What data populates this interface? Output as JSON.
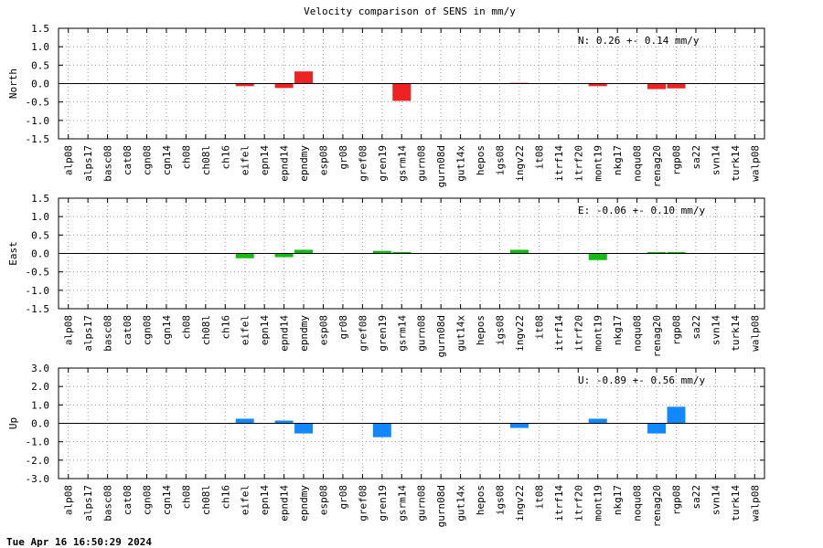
{
  "title": "Velocity comparison of SENS in mm/y",
  "footer": "Tue Apr 16 16:50:29 2024",
  "chart_data": {
    "type": "bar",
    "title": "Velocity comparison of SENS in mm/y",
    "categories": [
      "alp08",
      "alps17",
      "basc08",
      "cat08",
      "cgn08",
      "cgn14",
      "ch08",
      "ch08l",
      "ch16",
      "eifel",
      "epn14",
      "epnd14",
      "epndmy",
      "esp08",
      "gr08",
      "gref08",
      "gren19",
      "gsrm14",
      "gurn08",
      "gurn08d",
      "gut14x",
      "hepos",
      "igs08",
      "ingv22",
      "it08",
      "itrf14",
      "itrf20",
      "mont19",
      "nkg17",
      "noqu08",
      "renag20",
      "rgp08",
      "sa22",
      "svn14",
      "turk14",
      "walp08"
    ],
    "panels": [
      {
        "ylabel": "North",
        "ylim": [
          -1.5,
          1.5
        ],
        "yticks": [
          "1.5",
          "1.0",
          "0.5",
          "0.0",
          "-0.5",
          "-1.0",
          "-1.5"
        ],
        "ytick_values": [
          1.5,
          1.0,
          0.5,
          0.0,
          -0.5,
          -1.0,
          -1.5
        ],
        "annotation": "N:   0.26 +-  0.14 mm/y",
        "color": "#ee2222",
        "values": [
          0,
          0,
          0,
          0,
          0,
          0,
          0,
          0,
          0,
          -0.07,
          0,
          -0.12,
          0.33,
          0,
          0,
          0,
          0,
          -0.47,
          0,
          0,
          0,
          0,
          0,
          0.02,
          0,
          0,
          0,
          -0.07,
          0,
          0,
          -0.15,
          -0.13,
          0,
          0,
          0,
          0
        ]
      },
      {
        "ylabel": "East",
        "ylim": [
          -1.5,
          1.5
        ],
        "yticks": [
          "1.5",
          "1.0",
          "0.5",
          "0.0",
          "-0.5",
          "-1.0",
          "-1.5"
        ],
        "ytick_values": [
          1.5,
          1.0,
          0.5,
          0.0,
          -0.5,
          -1.0,
          -1.5
        ],
        "annotation": "E:  -0.06 +-  0.10 mm/y",
        "color": "#11bb11",
        "values": [
          0,
          0,
          0,
          0,
          0,
          0,
          0,
          0,
          0,
          -0.13,
          0,
          -0.1,
          0.1,
          0,
          0,
          0,
          0.07,
          0.04,
          0,
          0,
          0,
          0,
          0,
          0.1,
          0,
          0,
          0,
          -0.18,
          0,
          0,
          0.04,
          0.04,
          0,
          0,
          0,
          0
        ]
      },
      {
        "ylabel": "Up",
        "ylim": [
          -3.0,
          3.0
        ],
        "yticks": [
          "3.0",
          "2.0",
          "1.0",
          "0.0",
          "-1.0",
          "-2.0",
          "-3.0"
        ],
        "ytick_values": [
          3.0,
          2.0,
          1.0,
          0.0,
          -1.0,
          -2.0,
          -3.0
        ],
        "annotation": "U:  -0.89 +-  0.56 mm/y",
        "color": "#1188ff",
        "values": [
          0,
          0,
          0,
          0,
          0,
          0,
          0,
          0,
          0,
          0.25,
          0,
          0.15,
          -0.55,
          0,
          0,
          0,
          -0.75,
          0,
          0,
          0,
          0,
          0,
          0,
          -0.25,
          0,
          0,
          0,
          0.25,
          0,
          0,
          -0.55,
          0.9,
          0,
          0,
          0,
          0
        ]
      }
    ],
    "grid": true
  }
}
